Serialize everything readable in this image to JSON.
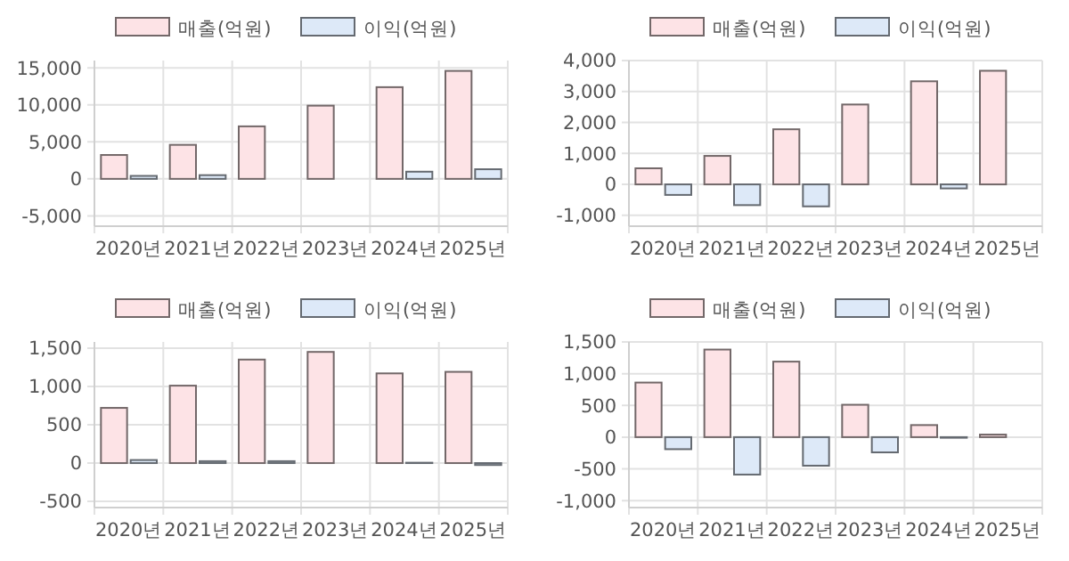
{
  "chart_data": [
    {
      "type": "bar",
      "categories": [
        "2020년",
        "2021년",
        "2022년",
        "2023년",
        "2024년",
        "2025년"
      ],
      "series": [
        {
          "name": "매출(억원)",
          "color": "#fde3e6",
          "values": [
            3230,
            4600,
            7100,
            9900,
            12400,
            14600
          ]
        },
        {
          "name": "이익(억원)",
          "color": "#dde9f8",
          "values": [
            400,
            500,
            0,
            0,
            970,
            1300
          ]
        }
      ],
      "ylim": [
        -6400,
        16000
      ],
      "yticks": [
        {
          "value": -5000,
          "label": "-5,000"
        },
        0,
        {
          "value": 5000,
          "label": "5,000"
        },
        {
          "value": 10000,
          "label": "10,000"
        },
        {
          "value": 15000,
          "label": "15,000"
        }
      ],
      "grid": true,
      "legend": "top"
    },
    {
      "type": "bar",
      "categories": [
        "2020년",
        "2021년",
        "2022년",
        "2023년",
        "2024년",
        "2025년"
      ],
      "series": [
        {
          "name": "매출(억원)",
          "color": "#fde3e6",
          "values": [
            520,
            920,
            1780,
            2580,
            3330,
            3670
          ]
        },
        {
          "name": "이익(억원)",
          "color": "#dde9f8",
          "values": [
            -340,
            -670,
            -710,
            0,
            -130,
            0
          ]
        }
      ],
      "ylim": [
        -1350,
        4000
      ],
      "yticks": [
        {
          "value": -1000,
          "label": "-1,000"
        },
        0,
        {
          "value": 1000,
          "label": "1,000"
        },
        {
          "value": 2000,
          "label": "2,000"
        },
        {
          "value": 3000,
          "label": "3,000"
        },
        {
          "value": 4000,
          "label": "4,000"
        }
      ],
      "grid": true,
      "legend": "top"
    },
    {
      "type": "bar",
      "categories": [
        "2020년",
        "2021년",
        "2022년",
        "2023년",
        "2024년",
        "2025년"
      ],
      "series": [
        {
          "name": "매출(억원)",
          "color": "#fde3e6",
          "values": [
            720,
            1010,
            1350,
            1450,
            1170,
            1190
          ]
        },
        {
          "name": "이익(억원)",
          "color": "#dde9f8",
          "values": [
            40,
            25,
            25,
            0,
            5,
            -25
          ]
        }
      ],
      "ylim": [
        -580,
        1580
      ],
      "yticks": [
        -500,
        0,
        500,
        {
          "value": 1000,
          "label": "1,000"
        },
        {
          "value": 1500,
          "label": "1,500"
        }
      ],
      "grid": true,
      "legend": "top"
    },
    {
      "type": "bar",
      "categories": [
        "2020년",
        "2021년",
        "2022년",
        "2023년",
        "2024년",
        "2025년"
      ],
      "series": [
        {
          "name": "매출(억원)",
          "color": "#fde3e6",
          "values": [
            860,
            1380,
            1190,
            510,
            190,
            40
          ]
        },
        {
          "name": "이익(억원)",
          "color": "#dde9f8",
          "values": [
            -190,
            -590,
            -450,
            -240,
            -10,
            0
          ]
        }
      ],
      "ylim": [
        -1110,
        1500
      ],
      "yticks": [
        {
          "value": -1000,
          "label": "-1,000"
        },
        -500,
        0,
        500,
        {
          "value": 1000,
          "label": "1,000"
        },
        {
          "value": 1500,
          "label": "1,500"
        }
      ],
      "grid": true,
      "legend": "top"
    }
  ]
}
